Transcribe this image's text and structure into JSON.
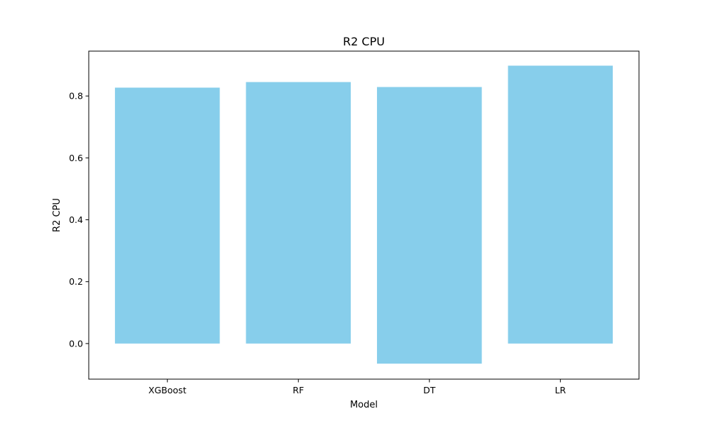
{
  "chart_data": {
    "type": "bar",
    "title": "R2 CPU",
    "xlabel": "Model",
    "ylabel": "R2 CPU",
    "categories": [
      "XGBoost",
      "RF",
      "DT",
      "LR"
    ],
    "values": [
      0.827,
      0.845,
      -0.065,
      0.898
    ],
    "bar_top_dt": 0.829,
    "ylim": [
      -0.115,
      0.945
    ],
    "yticks": [
      0.0,
      0.2,
      0.4,
      0.6,
      0.8
    ],
    "ytick_labels": [
      "0.0",
      "0.2",
      "0.4",
      "0.6",
      "0.8"
    ],
    "bar_color": "#87ceeb",
    "grid": false,
    "legend": "none"
  }
}
